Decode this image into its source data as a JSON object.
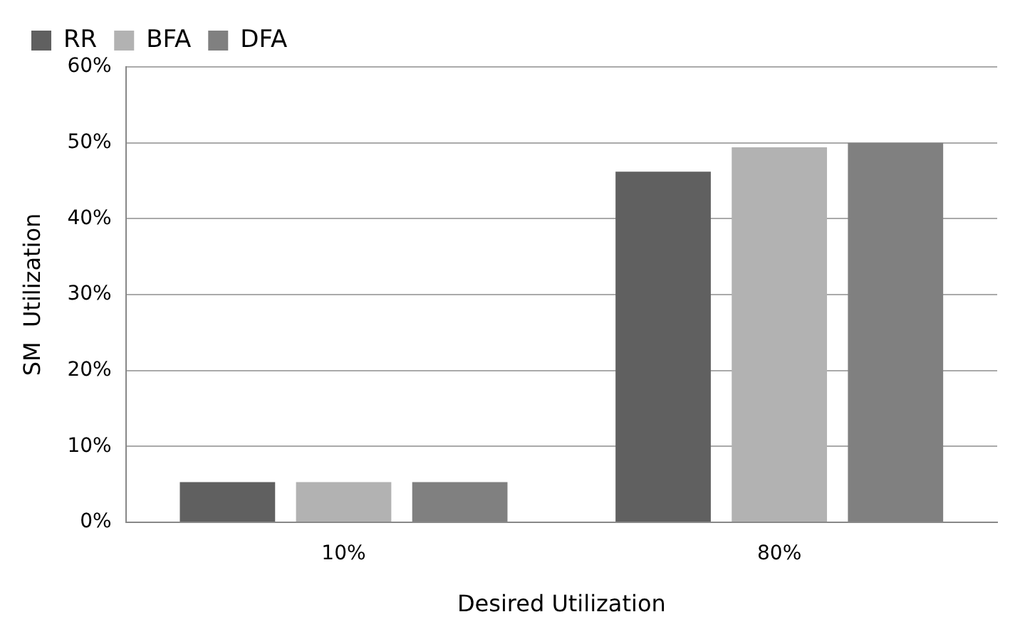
{
  "chart_data": {
    "type": "bar",
    "xlabel": "Desired Utilization",
    "ylabel": "SM  Utilization",
    "categories": [
      "10%",
      "80%"
    ],
    "series": [
      {
        "name": "RR",
        "color": "#606060",
        "values": [
          5.3,
          46.2
        ]
      },
      {
        "name": "BFA",
        "color": "#b2b2b2",
        "values": [
          5.3,
          49.4
        ]
      },
      {
        "name": "DFA",
        "color": "#808080",
        "values": [
          5.3,
          50.0
        ]
      }
    ],
    "ylim": [
      0,
      60
    ],
    "yticks": [
      {
        "value": 0,
        "label": "0%"
      },
      {
        "value": 10,
        "label": "10%"
      },
      {
        "value": 20,
        "label": "20%"
      },
      {
        "value": 30,
        "label": "30%"
      },
      {
        "value": 40,
        "label": "40%"
      },
      {
        "value": 50,
        "label": "50%"
      },
      {
        "value": 60,
        "label": "60%"
      }
    ],
    "grid": "y",
    "legend": "top left"
  }
}
